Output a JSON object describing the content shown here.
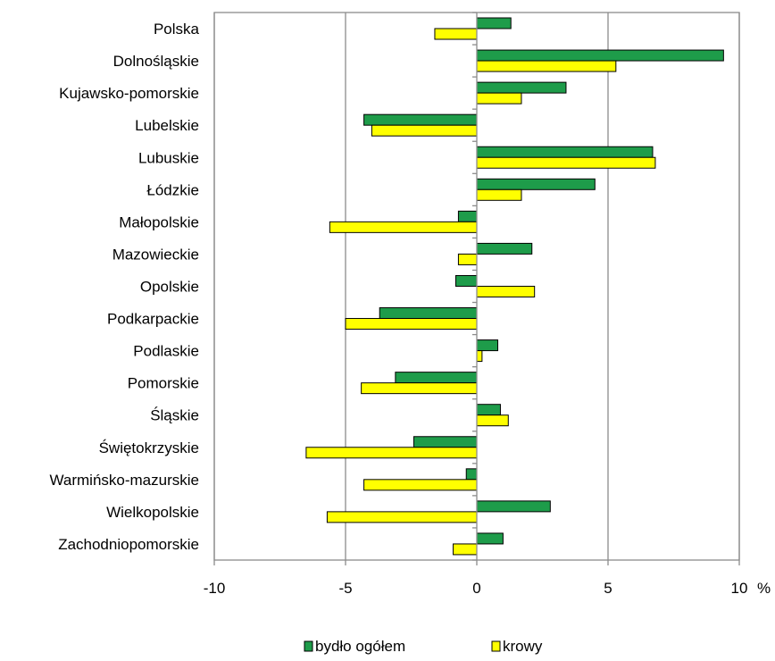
{
  "chart_data": {
    "type": "bar",
    "orientation": "horizontal",
    "categories": [
      "Polska",
      "Dolnośląskie",
      "Kujawsko-pomorskie",
      "Lubelskie",
      "Lubuskie",
      "Łódzkie",
      "Małopolskie",
      "Mazowieckie",
      "Opolskie",
      "Podkarpackie",
      "Podlaskie",
      "Pomorskie",
      "Śląskie",
      "Świętokrzyskie",
      "Warmińsko-mazurskie",
      "Wielkopolskie",
      "Zachodniopomorskie"
    ],
    "series": [
      {
        "name": "bydło ogółem",
        "color": "#1e9c4a",
        "values": [
          1.3,
          9.4,
          3.4,
          -4.3,
          6.7,
          4.5,
          -0.7,
          2.1,
          -0.8,
          -3.7,
          0.8,
          -3.1,
          0.9,
          -2.4,
          -0.4,
          2.8,
          1.0
        ]
      },
      {
        "name": "krowy",
        "color": "#ffff00",
        "values": [
          -1.6,
          5.3,
          1.7,
          -4.0,
          6.8,
          1.7,
          -5.6,
          -0.7,
          2.2,
          -5.0,
          0.2,
          -4.4,
          1.2,
          -6.5,
          -4.3,
          -5.7,
          -0.9
        ]
      }
    ],
    "x_ticks": [
      "-10",
      "-5",
      "0",
      "5",
      "10"
    ],
    "x_tick_values": [
      -10,
      -5,
      0,
      5,
      10
    ],
    "x_unit": "%",
    "xlim": [
      -10,
      10
    ],
    "grid": "vertical",
    "legend_position": "bottom-center",
    "title": "",
    "xlabel": "",
    "ylabel": ""
  }
}
